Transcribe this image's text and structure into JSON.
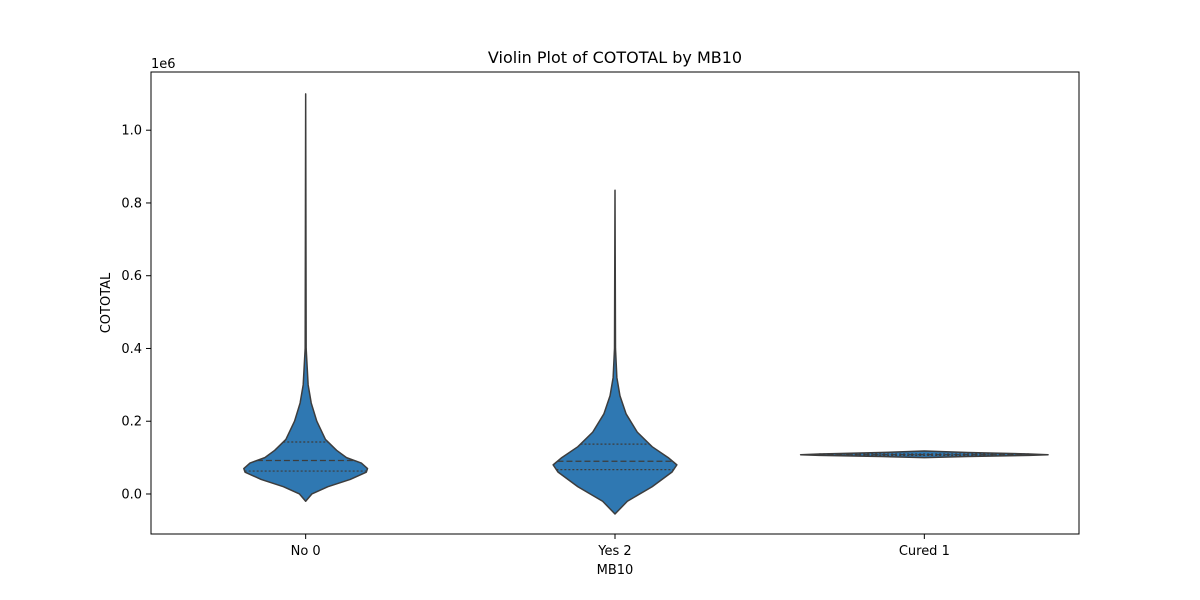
{
  "chart_data": {
    "type": "violin",
    "title": "Violin Plot of COTOTAL by MB10",
    "xlabel": "MB10",
    "ylabel": "COTOTAL",
    "y_offset_label": "1e6",
    "y_scale_factor": 1000000,
    "categories": [
      "No 0",
      "Yes 2",
      "Cured 1"
    ],
    "ylim": [
      -110000,
      1160000
    ],
    "yticks": [
      0.0,
      0.2,
      0.4,
      0.6,
      0.8,
      1.0
    ],
    "ytick_labels": [
      "0.0",
      "0.2",
      "0.4",
      "0.6",
      "0.8",
      "1.0"
    ],
    "grid": false,
    "violins": [
      {
        "category": "No 0",
        "min": -20000,
        "max": 1100000,
        "q1": 63000,
        "median": 92000,
        "q3": 143000,
        "profile": [
          [
            -20000,
            0.0
          ],
          [
            0,
            0.05
          ],
          [
            20000,
            0.18
          ],
          [
            40000,
            0.36
          ],
          [
            60000,
            0.49
          ],
          [
            70000,
            0.5
          ],
          [
            85000,
            0.45
          ],
          [
            100000,
            0.33
          ],
          [
            120000,
            0.25
          ],
          [
            150000,
            0.16
          ],
          [
            200000,
            0.09
          ],
          [
            250000,
            0.045
          ],
          [
            300000,
            0.02
          ],
          [
            400000,
            0.004
          ],
          [
            1100000,
            0.0
          ]
        ]
      },
      {
        "category": "Yes 2",
        "min": -55000,
        "max": 835000,
        "q1": 67000,
        "median": 90000,
        "q3": 137000,
        "profile": [
          [
            -55000,
            0.0
          ],
          [
            -20000,
            0.1
          ],
          [
            20000,
            0.3
          ],
          [
            60000,
            0.46
          ],
          [
            80000,
            0.5
          ],
          [
            100000,
            0.43
          ],
          [
            130000,
            0.3
          ],
          [
            170000,
            0.18
          ],
          [
            220000,
            0.09
          ],
          [
            270000,
            0.04
          ],
          [
            320000,
            0.015
          ],
          [
            400000,
            0.004
          ],
          [
            835000,
            0.0
          ]
        ]
      },
      {
        "category": "Cured 1",
        "min": 100000,
        "max": 118000,
        "q1": 106000,
        "median": 108000,
        "q3": 110000,
        "profile": [
          [
            100000,
            0.0
          ],
          [
            103000,
            0.35
          ],
          [
            106000,
            0.85
          ],
          [
            108000,
            1.0
          ],
          [
            110000,
            0.85
          ],
          [
            114000,
            0.35
          ],
          [
            118000,
            0.0
          ]
        ]
      }
    ],
    "colors": {
      "fill": "#2f78b2",
      "edge": "#3d3d3d",
      "axis": "#000000"
    }
  }
}
